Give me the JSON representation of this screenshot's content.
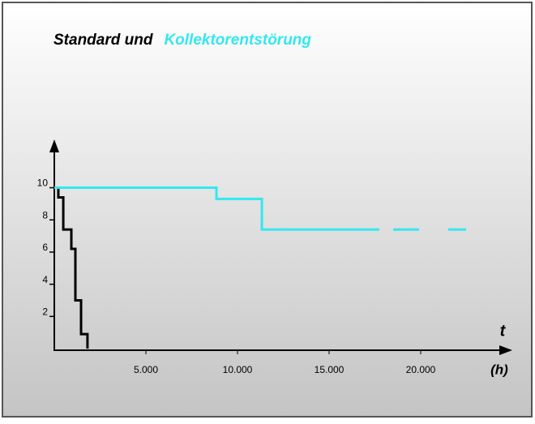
{
  "chart_data": {
    "type": "step",
    "title_parts": [
      {
        "text": "Standard und",
        "color": "#000000"
      },
      {
        "text": "Kollektorentstörung",
        "color": "#33e8f0"
      }
    ],
    "x_label": "t",
    "x_unit": "(h)",
    "xlim": [
      0,
      25000
    ],
    "ylim": [
      0,
      13
    ],
    "xticks": [
      {
        "value": 5000,
        "label": "5.000"
      },
      {
        "value": 10000,
        "label": "10.000"
      },
      {
        "value": 15000,
        "label": "15.000"
      },
      {
        "value": 20000,
        "label": "20.000"
      }
    ],
    "yticks": [
      2,
      4,
      6,
      8,
      10
    ],
    "series": [
      {
        "color": "#000000",
        "x": [
          0,
          220,
          490,
          930,
          1150,
          1460,
          1810
        ],
        "values": [
          10,
          9.4,
          7.4,
          6.2,
          3.0,
          0.9,
          0
        ]
      },
      {
        "color": "#33e8f0",
        "x": [
          0,
          8850,
          11330,
          17740,
          18120,
          18500,
          19910,
          20700,
          21500,
          22480
        ],
        "values": [
          10,
          9.3,
          7.4,
          7.4,
          null,
          7.4,
          7.4,
          null,
          7.4,
          7.4
        ]
      }
    ]
  }
}
